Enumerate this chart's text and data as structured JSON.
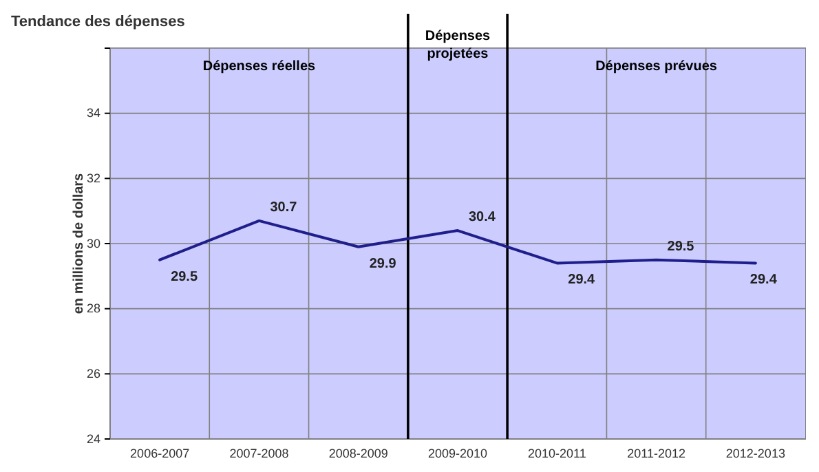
{
  "chart_data": {
    "type": "line",
    "title": "Tendance des dépenses",
    "ylabel": "en millions de dollars",
    "categories": [
      "2006-2007",
      "2007-2008",
      "2008-2009",
      "2009-2010",
      "2010-2011",
      "2011-2012",
      "2012-2013"
    ],
    "series": [
      {
        "color": "#1f1f8c",
        "values": [
          29.5,
          30.7,
          29.9,
          30.4,
          29.4,
          29.5,
          29.4
        ]
      }
    ],
    "ylim": [
      24,
      36
    ],
    "yticks": [
      24,
      26,
      28,
      30,
      32,
      34,
      {
        "value": 36,
        "label": null
      }
    ],
    "bands": [
      {
        "axis": "x",
        "from": "2006-2007",
        "to": "2008-2009",
        "label": "Dépenses réelles",
        "color": "#ccccff"
      },
      {
        "axis": "x",
        "from": "2009-2010",
        "to": "2009-2010",
        "label": "Dépenses projetées",
        "color": "#ccccff"
      },
      {
        "axis": "x",
        "from": "2010-2011",
        "to": "2012-2013",
        "label": "Dépenses prévues",
        "color": "#ccccff"
      }
    ],
    "data_labels": true,
    "grid": true,
    "marker": "none",
    "line_style": "solid"
  }
}
